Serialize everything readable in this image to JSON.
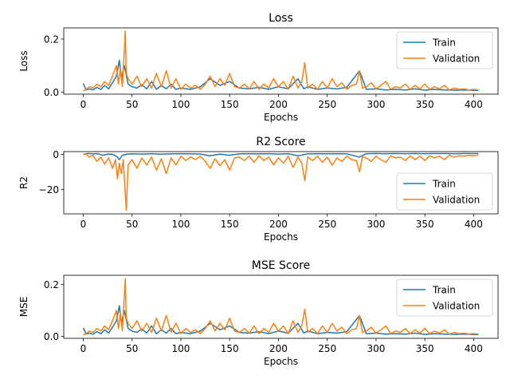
{
  "chart_data": [
    {
      "type": "line",
      "title": "Loss",
      "xlabel": "Epochs",
      "ylabel": "Loss",
      "xlim": [
        -20,
        425
      ],
      "ylim": [
        -0.008,
        0.242
      ],
      "xticks": [
        "0",
        "50",
        "100",
        "150",
        "200",
        "250",
        "300",
        "350",
        "400"
      ],
      "yticks": [
        "0.0",
        "0.2"
      ],
      "legend": "top-right",
      "series": [
        {
          "name": "Train",
          "color": "#1f77b4",
          "x": [
            0,
            3,
            6,
            10,
            14,
            18,
            22,
            26,
            30,
            34,
            37,
            39,
            42,
            46,
            50,
            55,
            60,
            65,
            70,
            75,
            80,
            85,
            90,
            95,
            100,
            110,
            120,
            130,
            140,
            150,
            160,
            170,
            180,
            190,
            200,
            210,
            220,
            226,
            230,
            240,
            250,
            260,
            270,
            283,
            290,
            300,
            310,
            320,
            330,
            340,
            350,
            360,
            370,
            380,
            390,
            405
          ],
          "y": [
            0.032,
            0.008,
            0.012,
            0.008,
            0.018,
            0.01,
            0.025,
            0.012,
            0.035,
            0.06,
            0.12,
            0.05,
            0.1,
            0.03,
            0.02,
            0.015,
            0.028,
            0.012,
            0.04,
            0.01,
            0.025,
            0.012,
            0.03,
            0.01,
            0.015,
            0.01,
            0.02,
            0.05,
            0.025,
            0.04,
            0.015,
            0.012,
            0.018,
            0.01,
            0.02,
            0.012,
            0.05,
            0.012,
            0.02,
            0.01,
            0.015,
            0.012,
            0.018,
            0.08,
            0.01,
            0.012,
            0.008,
            0.01,
            0.008,
            0.012,
            0.007,
            0.01,
            0.008,
            0.007,
            0.008,
            0.006
          ]
        },
        {
          "name": "Validation",
          "color": "#ff7f0e",
          "x": [
            0,
            3,
            6,
            10,
            14,
            18,
            22,
            26,
            30,
            34,
            36,
            38,
            40,
            42,
            43,
            44,
            46,
            50,
            55,
            60,
            65,
            70,
            75,
            80,
            85,
            90,
            95,
            100,
            105,
            110,
            115,
            120,
            125,
            130,
            135,
            140,
            145,
            150,
            155,
            160,
            165,
            170,
            175,
            180,
            185,
            190,
            195,
            200,
            205,
            210,
            215,
            220,
            224,
            227,
            230,
            235,
            240,
            245,
            250,
            255,
            260,
            265,
            270,
            275,
            280,
            283,
            286,
            290,
            295,
            300,
            305,
            310,
            315,
            320,
            325,
            330,
            335,
            340,
            345,
            350,
            355,
            360,
            365,
            370,
            375,
            380,
            385,
            390,
            395,
            400,
            405
          ],
          "y": [
            0.005,
            0.01,
            0.02,
            0.015,
            0.03,
            0.02,
            0.04,
            0.025,
            0.06,
            0.1,
            0.03,
            0.09,
            0.02,
            0.15,
            0.23,
            0.07,
            0.05,
            0.03,
            0.06,
            0.02,
            0.05,
            0.015,
            0.07,
            0.02,
            0.08,
            0.015,
            0.05,
            0.01,
            0.03,
            0.015,
            0.025,
            0.01,
            0.03,
            0.06,
            0.02,
            0.05,
            0.025,
            0.07,
            0.02,
            0.015,
            0.03,
            0.012,
            0.04,
            0.01,
            0.03,
            0.015,
            0.05,
            0.02,
            0.04,
            0.01,
            0.06,
            0.015,
            0.04,
            0.11,
            0.015,
            0.03,
            0.01,
            0.04,
            0.015,
            0.05,
            0.02,
            0.035,
            0.01,
            0.025,
            0.03,
            0.08,
            0.015,
            0.02,
            0.035,
            0.012,
            0.025,
            0.04,
            0.01,
            0.02,
            0.015,
            0.03,
            0.01,
            0.025,
            0.012,
            0.03,
            0.01,
            0.02,
            0.012,
            0.025,
            0.008,
            0.015,
            0.01,
            0.012,
            0.008,
            0.01,
            0.008
          ]
        }
      ]
    },
    {
      "type": "line",
      "title": "R2 Score",
      "xlabel": "Epochs",
      "ylabel": "R2",
      "xlim": [
        -20,
        425
      ],
      "ylim": [
        -34,
        1.6
      ],
      "xticks": [
        "0",
        "50",
        "100",
        "150",
        "200",
        "250",
        "300",
        "350",
        "400"
      ],
      "yticks": [
        "0",
        "−20"
      ],
      "legend": "bottom-right",
      "series": [
        {
          "name": "Train",
          "color": "#1f77b4",
          "x": [
            0,
            5,
            10,
            15,
            20,
            25,
            30,
            35,
            37,
            40,
            45,
            50,
            60,
            70,
            80,
            90,
            100,
            110,
            120,
            130,
            140,
            150,
            160,
            170,
            180,
            190,
            200,
            210,
            220,
            230,
            240,
            250,
            260,
            270,
            283,
            290,
            300,
            310,
            320,
            330,
            340,
            350,
            360,
            370,
            380,
            390,
            405
          ],
          "y": [
            0.0,
            0.5,
            0.3,
            0.4,
            -0.5,
            0.2,
            0.1,
            -1.5,
            -3.0,
            -0.5,
            0.2,
            0.3,
            0.2,
            0.4,
            0.1,
            0.3,
            0.4,
            0.3,
            0.2,
            -0.8,
            0.2,
            -0.5,
            0.3,
            0.4,
            0.3,
            0.4,
            0.2,
            0.4,
            -0.8,
            0.3,
            0.4,
            0.3,
            0.4,
            0.3,
            -1.5,
            0.4,
            0.5,
            0.4,
            0.5,
            0.4,
            0.5,
            0.4,
            0.5,
            0.5,
            0.4,
            0.5,
            0.5
          ]
        },
        {
          "name": "Validation",
          "color": "#ff7f0e",
          "x": [
            0,
            3,
            6,
            10,
            14,
            18,
            22,
            26,
            30,
            33,
            35,
            37,
            39,
            41,
            43,
            44,
            46,
            50,
            55,
            60,
            65,
            70,
            75,
            80,
            85,
            90,
            95,
            100,
            105,
            110,
            115,
            120,
            125,
            130,
            135,
            140,
            145,
            150,
            155,
            160,
            165,
            170,
            175,
            180,
            185,
            190,
            195,
            200,
            205,
            210,
            215,
            220,
            224,
            227,
            230,
            235,
            240,
            245,
            250,
            255,
            260,
            265,
            270,
            275,
            280,
            283,
            286,
            290,
            295,
            300,
            305,
            310,
            315,
            320,
            325,
            330,
            335,
            340,
            345,
            350,
            355,
            360,
            365,
            370,
            375,
            380,
            385,
            390,
            395,
            400,
            405
          ],
          "y": [
            0.3,
            0.1,
            -1.5,
            -0.5,
            -4.0,
            -1.5,
            -5.5,
            -2.0,
            -8.0,
            -3.0,
            -14.0,
            -5.0,
            -11.0,
            -3.0,
            -22.0,
            -32.0,
            -6.0,
            -3.0,
            -8.0,
            -2.0,
            -6.0,
            -1.5,
            -9.0,
            -2.5,
            -11.0,
            -2.0,
            -6.0,
            -1.0,
            -3.5,
            -1.5,
            -3.0,
            -1.0,
            -4.0,
            -8.0,
            -2.5,
            -6.5,
            -3.0,
            -9.0,
            -2.0,
            -1.5,
            -3.5,
            -1.0,
            -4.5,
            -0.8,
            -3.5,
            -1.5,
            -6.0,
            -2.0,
            -5.0,
            -1.0,
            -7.5,
            -1.5,
            -5.0,
            -15.0,
            -1.5,
            -3.5,
            -1.0,
            -4.5,
            -1.5,
            -6.0,
            -2.0,
            -4.0,
            -1.0,
            -3.0,
            -3.5,
            -10.0,
            -1.5,
            -2.0,
            -4.0,
            -1.0,
            -3.0,
            -4.5,
            -0.8,
            -2.0,
            -1.5,
            -3.5,
            -0.8,
            -3.0,
            -1.0,
            -3.5,
            -0.8,
            -2.0,
            -1.0,
            -3.0,
            -0.5,
            -1.5,
            -0.8,
            -1.0,
            -0.5,
            -0.8,
            -0.3
          ]
        }
      ]
    },
    {
      "type": "line",
      "title": "MSE Score",
      "xlabel": "Epochs",
      "ylabel": "MSE",
      "xlim": [
        -20,
        425
      ],
      "ylim": [
        -0.008,
        0.236
      ],
      "xticks": [
        "0",
        "50",
        "100",
        "150",
        "200",
        "250",
        "300",
        "350",
        "400"
      ],
      "yticks": [
        "0.0",
        "0.2"
      ],
      "legend": "top-right",
      "series": [
        {
          "name": "Train",
          "color": "#1f77b4",
          "x": [
            0,
            3,
            6,
            10,
            14,
            18,
            22,
            26,
            30,
            34,
            37,
            39,
            42,
            46,
            50,
            55,
            60,
            65,
            70,
            75,
            80,
            85,
            90,
            95,
            100,
            110,
            120,
            130,
            140,
            150,
            160,
            170,
            180,
            190,
            200,
            210,
            220,
            226,
            230,
            240,
            250,
            260,
            270,
            283,
            290,
            300,
            310,
            320,
            330,
            340,
            350,
            360,
            370,
            380,
            390,
            405
          ],
          "y": [
            0.032,
            0.008,
            0.012,
            0.008,
            0.018,
            0.01,
            0.025,
            0.012,
            0.035,
            0.06,
            0.118,
            0.05,
            0.1,
            0.03,
            0.02,
            0.015,
            0.028,
            0.012,
            0.04,
            0.01,
            0.025,
            0.012,
            0.03,
            0.01,
            0.015,
            0.01,
            0.02,
            0.05,
            0.025,
            0.04,
            0.015,
            0.012,
            0.018,
            0.01,
            0.02,
            0.012,
            0.05,
            0.012,
            0.02,
            0.01,
            0.015,
            0.012,
            0.018,
            0.08,
            0.01,
            0.012,
            0.008,
            0.01,
            0.008,
            0.012,
            0.007,
            0.01,
            0.008,
            0.007,
            0.008,
            0.006
          ]
        },
        {
          "name": "Validation",
          "color": "#ff7f0e",
          "x": [
            0,
            3,
            6,
            10,
            14,
            18,
            22,
            26,
            30,
            34,
            36,
            38,
            40,
            42,
            43,
            44,
            46,
            50,
            55,
            60,
            65,
            70,
            75,
            80,
            85,
            90,
            95,
            100,
            105,
            110,
            115,
            120,
            125,
            130,
            135,
            140,
            145,
            150,
            155,
            160,
            165,
            170,
            175,
            180,
            185,
            190,
            195,
            200,
            205,
            210,
            215,
            220,
            224,
            227,
            230,
            235,
            240,
            245,
            250,
            255,
            260,
            265,
            270,
            275,
            280,
            283,
            286,
            290,
            295,
            300,
            305,
            310,
            315,
            320,
            325,
            330,
            335,
            340,
            345,
            350,
            355,
            360,
            365,
            370,
            375,
            380,
            385,
            390,
            395,
            400,
            405
          ],
          "y": [
            0.005,
            0.01,
            0.02,
            0.015,
            0.03,
            0.02,
            0.04,
            0.025,
            0.06,
            0.1,
            0.03,
            0.09,
            0.02,
            0.15,
            0.222,
            0.07,
            0.05,
            0.03,
            0.06,
            0.02,
            0.05,
            0.015,
            0.07,
            0.02,
            0.08,
            0.015,
            0.05,
            0.01,
            0.03,
            0.015,
            0.025,
            0.01,
            0.03,
            0.06,
            0.02,
            0.05,
            0.025,
            0.07,
            0.02,
            0.015,
            0.03,
            0.012,
            0.04,
            0.01,
            0.03,
            0.015,
            0.05,
            0.02,
            0.04,
            0.01,
            0.06,
            0.015,
            0.04,
            0.105,
            0.015,
            0.03,
            0.01,
            0.04,
            0.015,
            0.05,
            0.02,
            0.035,
            0.01,
            0.025,
            0.03,
            0.08,
            0.015,
            0.02,
            0.035,
            0.012,
            0.025,
            0.04,
            0.01,
            0.02,
            0.015,
            0.03,
            0.01,
            0.025,
            0.012,
            0.03,
            0.01,
            0.02,
            0.012,
            0.025,
            0.008,
            0.015,
            0.01,
            0.012,
            0.008,
            0.01,
            0.008
          ]
        }
      ]
    }
  ]
}
